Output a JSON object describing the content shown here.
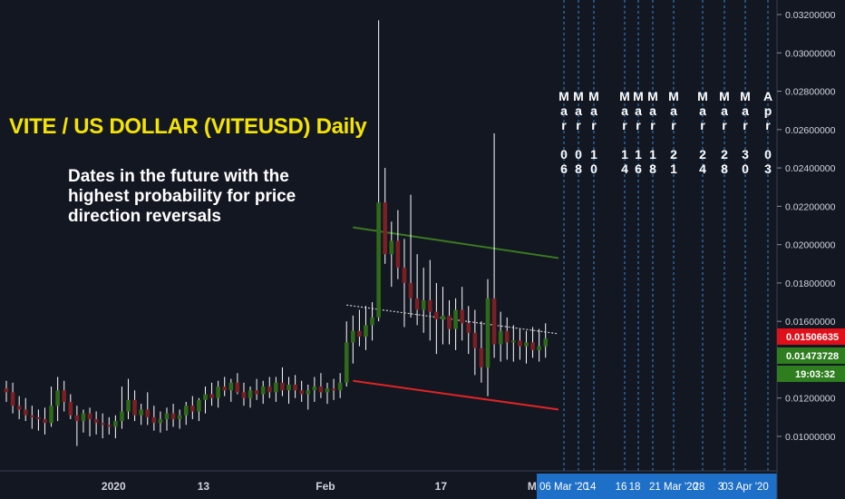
{
  "chart_data": {
    "type": "candlestick",
    "title": "VITE / US DOLLAR (VITEUSD) Daily",
    "subtitle": "Dates in the future with the highest probability for price direction reversals",
    "ylim": [
      0.0086,
      0.0327
    ],
    "y_ticks": [
      "0.03200000",
      "0.03000000",
      "0.02800000",
      "0.02600000",
      "0.02400000",
      "0.02200000",
      "0.02000000",
      "0.01800000",
      "0.01600000",
      "0.01200000",
      "0.01000000"
    ],
    "x_ticks": [
      {
        "label": "2020",
        "bar": 16
      },
      {
        "label": "13",
        "bar": 30
      },
      {
        "label": "Feb",
        "bar": 49
      },
      {
        "label": "17",
        "bar": 67
      },
      {
        "label": "Mar",
        "bar": 82
      }
    ],
    "price_badges": [
      {
        "value": "0.01506635",
        "color": "#e0101a",
        "text_color": "#ffffff"
      },
      {
        "value": "0.01473728",
        "color": "#2e7d1f",
        "text_color": "#ffffff"
      },
      {
        "value": "19:03:32",
        "color": "#2e7d1f",
        "text_color": "#ffffff"
      }
    ],
    "future_dates": [
      {
        "label": "Mar 06",
        "short": "06 Mar '20"
      },
      {
        "label": "Mar 08",
        "short": ""
      },
      {
        "label": "Mar 10",
        "short": "14"
      },
      {
        "label": "Mar 14",
        "short": "16"
      },
      {
        "label": "Mar 16",
        "short": "18"
      },
      {
        "label": "Mar 18",
        "short": ""
      },
      {
        "label": "Mar 21",
        "short": "21 Mar '20"
      },
      {
        "label": "Mar 24",
        "short": "28"
      },
      {
        "label": "Mar 28",
        "short": "3"
      },
      {
        "label": "Mar 30",
        "short": "03 Apr '20"
      },
      {
        "label": "Apr 03",
        "short": ""
      }
    ],
    "trendlines": [
      {
        "name": "upper",
        "color": "#3b7a1f",
        "from": {
          "bar": 54,
          "y": 0.0209
        },
        "to": {
          "bar": 86,
          "y": 0.0193
        }
      },
      {
        "name": "middle",
        "color": "#cccccc",
        "from": {
          "bar": 53,
          "y": 0.01685
        },
        "to": {
          "bar": 86,
          "y": 0.01535
        }
      },
      {
        "name": "lower",
        "color": "#e02424",
        "from": {
          "bar": 54,
          "y": 0.0129
        },
        "to": {
          "bar": 86,
          "y": 0.0114
        }
      }
    ],
    "candles": [
      {
        "o": 0.0125,
        "h": 0.0129,
        "l": 0.0118,
        "c": 0.0123
      },
      {
        "o": 0.0123,
        "h": 0.0128,
        "l": 0.0112,
        "c": 0.0116
      },
      {
        "o": 0.0116,
        "h": 0.0121,
        "l": 0.0109,
        "c": 0.0114
      },
      {
        "o": 0.0114,
        "h": 0.012,
        "l": 0.0108,
        "c": 0.0111
      },
      {
        "o": 0.0111,
        "h": 0.0116,
        "l": 0.0104,
        "c": 0.011
      },
      {
        "o": 0.011,
        "h": 0.0114,
        "l": 0.0103,
        "c": 0.0109
      },
      {
        "o": 0.0109,
        "h": 0.0115,
        "l": 0.0101,
        "c": 0.0107
      },
      {
        "o": 0.0107,
        "h": 0.0126,
        "l": 0.0105,
        "c": 0.0116
      },
      {
        "o": 0.0116,
        "h": 0.0131,
        "l": 0.0108,
        "c": 0.0124
      },
      {
        "o": 0.0124,
        "h": 0.0129,
        "l": 0.0113,
        "c": 0.0118
      },
      {
        "o": 0.0118,
        "h": 0.0122,
        "l": 0.0109,
        "c": 0.0111
      },
      {
        "o": 0.0111,
        "h": 0.0116,
        "l": 0.0095,
        "c": 0.0108
      },
      {
        "o": 0.0108,
        "h": 0.0114,
        "l": 0.0102,
        "c": 0.0112
      },
      {
        "o": 0.0112,
        "h": 0.0115,
        "l": 0.01,
        "c": 0.0109
      },
      {
        "o": 0.0109,
        "h": 0.0113,
        "l": 0.0101,
        "c": 0.0107
      },
      {
        "o": 0.0107,
        "h": 0.0112,
        "l": 0.0099,
        "c": 0.0106
      },
      {
        "o": 0.0106,
        "h": 0.011,
        "l": 0.0101,
        "c": 0.0105
      },
      {
        "o": 0.0105,
        "h": 0.0111,
        "l": 0.0099,
        "c": 0.0108
      },
      {
        "o": 0.0108,
        "h": 0.0126,
        "l": 0.0104,
        "c": 0.0113
      },
      {
        "o": 0.0113,
        "h": 0.013,
        "l": 0.0109,
        "c": 0.0119
      },
      {
        "o": 0.0119,
        "h": 0.0124,
        "l": 0.0108,
        "c": 0.0111
      },
      {
        "o": 0.0111,
        "h": 0.0117,
        "l": 0.0106,
        "c": 0.0114
      },
      {
        "o": 0.0114,
        "h": 0.0123,
        "l": 0.0106,
        "c": 0.011
      },
      {
        "o": 0.011,
        "h": 0.0116,
        "l": 0.0103,
        "c": 0.0107
      },
      {
        "o": 0.0107,
        "h": 0.0113,
        "l": 0.0102,
        "c": 0.0109
      },
      {
        "o": 0.0109,
        "h": 0.0115,
        "l": 0.0103,
        "c": 0.0112
      },
      {
        "o": 0.0112,
        "h": 0.0117,
        "l": 0.0105,
        "c": 0.0109
      },
      {
        "o": 0.0109,
        "h": 0.0114,
        "l": 0.0104,
        "c": 0.0111
      },
      {
        "o": 0.0111,
        "h": 0.0118,
        "l": 0.0106,
        "c": 0.0116
      },
      {
        "o": 0.0116,
        "h": 0.0121,
        "l": 0.0109,
        "c": 0.0113
      },
      {
        "o": 0.0113,
        "h": 0.012,
        "l": 0.0108,
        "c": 0.0119
      },
      {
        "o": 0.0119,
        "h": 0.0126,
        "l": 0.0112,
        "c": 0.0122
      },
      {
        "o": 0.0122,
        "h": 0.0128,
        "l": 0.0116,
        "c": 0.012
      },
      {
        "o": 0.012,
        "h": 0.0129,
        "l": 0.0115,
        "c": 0.0126
      },
      {
        "o": 0.0126,
        "h": 0.0131,
        "l": 0.0121,
        "c": 0.0124
      },
      {
        "o": 0.0124,
        "h": 0.013,
        "l": 0.0118,
        "c": 0.0128
      },
      {
        "o": 0.0128,
        "h": 0.0133,
        "l": 0.0122,
        "c": 0.0123
      },
      {
        "o": 0.0123,
        "h": 0.0128,
        "l": 0.0116,
        "c": 0.012
      },
      {
        "o": 0.012,
        "h": 0.0126,
        "l": 0.0115,
        "c": 0.0124
      },
      {
        "o": 0.0124,
        "h": 0.013,
        "l": 0.0119,
        "c": 0.0122
      },
      {
        "o": 0.0122,
        "h": 0.0129,
        "l": 0.0117,
        "c": 0.0126
      },
      {
        "o": 0.0126,
        "h": 0.0131,
        "l": 0.012,
        "c": 0.0123
      },
      {
        "o": 0.0123,
        "h": 0.0131,
        "l": 0.0118,
        "c": 0.0128
      },
      {
        "o": 0.0128,
        "h": 0.0136,
        "l": 0.0121,
        "c": 0.0124
      },
      {
        "o": 0.0124,
        "h": 0.0131,
        "l": 0.0117,
        "c": 0.0127
      },
      {
        "o": 0.0127,
        "h": 0.0132,
        "l": 0.012,
        "c": 0.0124
      },
      {
        "o": 0.0124,
        "h": 0.0129,
        "l": 0.0118,
        "c": 0.0122
      },
      {
        "o": 0.0122,
        "h": 0.0127,
        "l": 0.0114,
        "c": 0.0124
      },
      {
        "o": 0.0124,
        "h": 0.0131,
        "l": 0.0118,
        "c": 0.0126
      },
      {
        "o": 0.0126,
        "h": 0.0133,
        "l": 0.012,
        "c": 0.0123
      },
      {
        "o": 0.0123,
        "h": 0.0128,
        "l": 0.0117,
        "c": 0.0125
      },
      {
        "o": 0.0125,
        "h": 0.013,
        "l": 0.0119,
        "c": 0.0124
      },
      {
        "o": 0.0124,
        "h": 0.0133,
        "l": 0.012,
        "c": 0.0128
      },
      {
        "o": 0.0128,
        "h": 0.016,
        "l": 0.0126,
        "c": 0.0149
      },
      {
        "o": 0.0149,
        "h": 0.0163,
        "l": 0.0138,
        "c": 0.0155
      },
      {
        "o": 0.0155,
        "h": 0.0166,
        "l": 0.0147,
        "c": 0.0152
      },
      {
        "o": 0.0152,
        "h": 0.0168,
        "l": 0.0145,
        "c": 0.0158
      },
      {
        "o": 0.0158,
        "h": 0.017,
        "l": 0.015,
        "c": 0.0162
      },
      {
        "o": 0.0162,
        "h": 0.0317,
        "l": 0.016,
        "c": 0.0222
      },
      {
        "o": 0.0222,
        "h": 0.024,
        "l": 0.019,
        "c": 0.0195
      },
      {
        "o": 0.0195,
        "h": 0.0212,
        "l": 0.0178,
        "c": 0.0202
      },
      {
        "o": 0.0202,
        "h": 0.0218,
        "l": 0.0182,
        "c": 0.0188
      },
      {
        "o": 0.0188,
        "h": 0.0203,
        "l": 0.0157,
        "c": 0.018
      },
      {
        "o": 0.018,
        "h": 0.0226,
        "l": 0.0162,
        "c": 0.0172
      },
      {
        "o": 0.0172,
        "h": 0.0195,
        "l": 0.0158,
        "c": 0.0166
      },
      {
        "o": 0.0166,
        "h": 0.0188,
        "l": 0.0154,
        "c": 0.0171
      },
      {
        "o": 0.0171,
        "h": 0.0192,
        "l": 0.015,
        "c": 0.0165
      },
      {
        "o": 0.0165,
        "h": 0.018,
        "l": 0.0143,
        "c": 0.0161
      },
      {
        "o": 0.0161,
        "h": 0.0178,
        "l": 0.0148,
        "c": 0.0163
      },
      {
        "o": 0.0163,
        "h": 0.0171,
        "l": 0.0148,
        "c": 0.0156
      },
      {
        "o": 0.0156,
        "h": 0.0172,
        "l": 0.0145,
        "c": 0.0166
      },
      {
        "o": 0.0166,
        "h": 0.0178,
        "l": 0.015,
        "c": 0.0159
      },
      {
        "o": 0.0159,
        "h": 0.0168,
        "l": 0.0143,
        "c": 0.0154
      },
      {
        "o": 0.0154,
        "h": 0.0166,
        "l": 0.0132,
        "c": 0.0146
      },
      {
        "o": 0.0146,
        "h": 0.016,
        "l": 0.0128,
        "c": 0.0136
      },
      {
        "o": 0.0136,
        "h": 0.0182,
        "l": 0.0121,
        "c": 0.0172
      },
      {
        "o": 0.0172,
        "h": 0.0258,
        "l": 0.0141,
        "c": 0.0148
      },
      {
        "o": 0.0148,
        "h": 0.0165,
        "l": 0.0139,
        "c": 0.0155
      },
      {
        "o": 0.0155,
        "h": 0.0162,
        "l": 0.014,
        "c": 0.0149
      },
      {
        "o": 0.0149,
        "h": 0.0158,
        "l": 0.0139,
        "c": 0.015
      },
      {
        "o": 0.015,
        "h": 0.0156,
        "l": 0.014,
        "c": 0.0147
      },
      {
        "o": 0.0147,
        "h": 0.0155,
        "l": 0.0138,
        "c": 0.0149
      },
      {
        "o": 0.0149,
        "h": 0.0157,
        "l": 0.0141,
        "c": 0.0145
      },
      {
        "o": 0.0145,
        "h": 0.0156,
        "l": 0.0139,
        "c": 0.0147
      },
      {
        "o": 0.0147,
        "h": 0.0159,
        "l": 0.0141,
        "c": 0.0151
      }
    ]
  }
}
